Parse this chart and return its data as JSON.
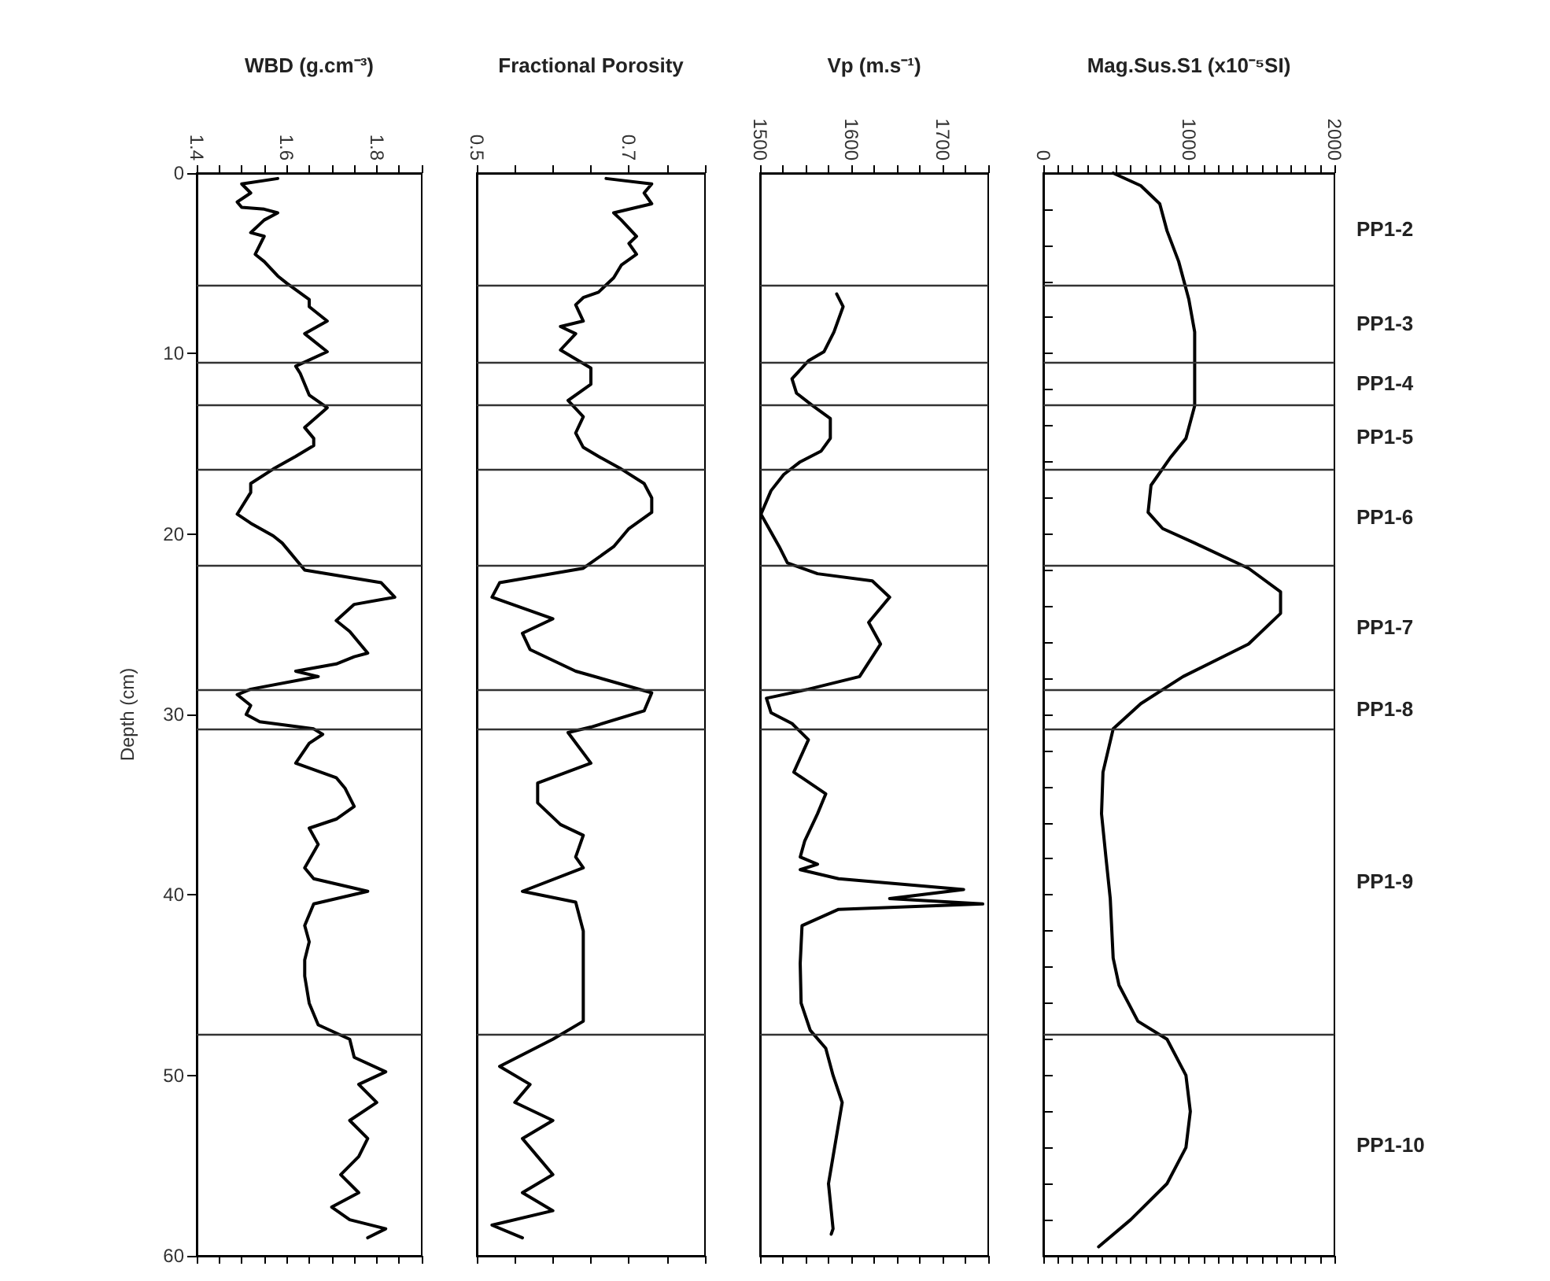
{
  "chart_data": [
    {
      "type": "line",
      "xlabel": "WBD (g.cm⁻³)",
      "ylabel": "Depth (cm)",
      "xlim": [
        1.4,
        1.9
      ],
      "xticks": [
        1.4,
        {
          "value": 1.45,
          "label": null
        },
        1.6,
        {
          "value": 1.5,
          "label": null
        },
        {
          "value": 1.55,
          "label": null
        },
        {
          "value": 1.65,
          "label": null
        },
        {
          "value": 1.7,
          "label": null
        },
        {
          "value": 1.75,
          "label": null
        },
        1.8,
        {
          "value": 1.85,
          "label": null
        },
        {
          "value": 1.9,
          "label": null
        }
      ],
      "ylim": [
        60,
        0
      ],
      "yticks": [
        0,
        10,
        20,
        30,
        40,
        50,
        60
      ],
      "series": [
        {
          "color": "#000000",
          "x": [
            1.58,
            1.5,
            1.52,
            1.49,
            1.5,
            1.55,
            1.58,
            1.55,
            1.52,
            1.55,
            1.53,
            1.55,
            1.58,
            1.6,
            1.65,
            1.65,
            1.69,
            1.64,
            1.69,
            1.62,
            1.63,
            1.65,
            1.69,
            1.64,
            1.66,
            1.66,
            1.62,
            1.57,
            1.52,
            1.52,
            1.49,
            1.52,
            1.57,
            1.59,
            1.64,
            1.81,
            1.84,
            1.75,
            1.71,
            1.74,
            1.78,
            1.75,
            1.71,
            1.62,
            1.67,
            1.52,
            1.49,
            1.52,
            1.51,
            1.54,
            1.66,
            1.68,
            1.65,
            1.62,
            1.71,
            1.73,
            1.75,
            1.71,
            1.65,
            1.67,
            1.64,
            1.66,
            1.78,
            1.66,
            1.64,
            1.65,
            1.64,
            1.64,
            1.65,
            1.67,
            1.74,
            1.75,
            1.82,
            1.76,
            1.8,
            1.74,
            1.78,
            1.76,
            1.72,
            1.76,
            1.7,
            1.74,
            1.82,
            1.78
          ],
          "values": [
            0.3,
            0.6,
            1.1,
            1.6,
            1.9,
            2.0,
            2.2,
            2.6,
            3.3,
            3.5,
            4.5,
            4.9,
            5.7,
            6.1,
            7.0,
            7.4,
            8.2,
            8.9,
            9.9,
            10.7,
            11.1,
            12.3,
            13.0,
            14.1,
            14.7,
            15.1,
            15.7,
            16.4,
            17.2,
            17.7,
            18.9,
            19.4,
            20.1,
            20.5,
            22.0,
            22.7,
            23.5,
            23.9,
            24.8,
            25.4,
            26.6,
            26.8,
            27.2,
            27.6,
            27.9,
            28.6,
            28.9,
            29.5,
            30.0,
            30.4,
            30.8,
            31.1,
            31.6,
            32.7,
            33.5,
            34.1,
            35.1,
            35.8,
            36.3,
            37.2,
            38.5,
            39.1,
            39.8,
            40.5,
            41.7,
            42.6,
            43.6,
            44.5,
            46.0,
            47.2,
            48.0,
            49.0,
            49.8,
            50.5,
            51.5,
            52.5,
            53.5,
            54.5,
            55.5,
            56.5,
            57.3,
            58.0,
            58.5,
            59.0
          ]
        }
      ],
      "ref_lines": [
        {
          "axis": "y",
          "value": 6.2
        },
        {
          "axis": "y",
          "value": 10.5
        },
        {
          "axis": "y",
          "value": 12.8
        },
        {
          "axis": "y",
          "value": 16.4
        },
        {
          "axis": "y",
          "value": 21.7
        },
        {
          "axis": "y",
          "value": 28.6
        },
        {
          "axis": "y",
          "value": 30.8
        },
        {
          "axis": "y",
          "value": 47.7
        }
      ]
    },
    {
      "type": "line",
      "xlabel": "Fractional Porosity",
      "tick_labels": "x",
      "xlim": [
        0.5,
        0.8
      ],
      "xticks": [
        0.5,
        {
          "value": 0.55,
          "label": null
        },
        {
          "value": 0.6,
          "label": null
        },
        {
          "value": 0.65,
          "label": null
        },
        0.7,
        {
          "value": 0.75,
          "label": null
        },
        {
          "value": 0.8,
          "label": null
        }
      ],
      "ylim": [
        60,
        0
      ],
      "series": [
        {
          "color": "#000000",
          "x": [
            0.67,
            0.73,
            0.72,
            0.73,
            0.68,
            0.69,
            0.71,
            0.7,
            0.71,
            0.69,
            0.68,
            0.66,
            0.64,
            0.63,
            0.64,
            0.61,
            0.63,
            0.61,
            0.65,
            0.65,
            0.62,
            0.64,
            0.63,
            0.64,
            0.66,
            0.69,
            0.72,
            0.73,
            0.73,
            0.7,
            0.68,
            0.64,
            0.53,
            0.52,
            0.6,
            0.56,
            0.57,
            0.63,
            0.73,
            0.72,
            0.65,
            0.62,
            0.65,
            0.58,
            0.58,
            0.61,
            0.64,
            0.63,
            0.64,
            0.56,
            0.63,
            0.64,
            0.64,
            0.64,
            0.64,
            0.6,
            0.53,
            0.57,
            0.55,
            0.6,
            0.56,
            0.58,
            0.6,
            0.56,
            0.6,
            0.52,
            0.56
          ],
          "values": [
            0.3,
            0.6,
            1.1,
            1.7,
            2.2,
            2.6,
            3.5,
            3.9,
            4.5,
            5.1,
            5.8,
            6.6,
            6.9,
            7.3,
            8.2,
            8.5,
            8.9,
            9.8,
            10.8,
            11.7,
            12.6,
            13.5,
            14.4,
            15.2,
            15.7,
            16.4,
            17.2,
            18.0,
            18.8,
            19.7,
            20.7,
            21.9,
            22.7,
            23.5,
            24.7,
            25.5,
            26.4,
            27.6,
            28.8,
            29.8,
            30.7,
            31.0,
            32.7,
            33.8,
            34.9,
            36.1,
            36.7,
            37.9,
            38.5,
            39.8,
            40.4,
            42.0,
            43.5,
            45.0,
            47.0,
            48.0,
            49.5,
            50.5,
            51.5,
            52.5,
            53.5,
            54.5,
            55.5,
            56.5,
            57.5,
            58.3,
            59.0
          ]
        }
      ],
      "ref_lines": [
        {
          "axis": "y",
          "value": 6.2
        },
        {
          "axis": "y",
          "value": 10.5
        },
        {
          "axis": "y",
          "value": 12.8
        },
        {
          "axis": "y",
          "value": 16.4
        },
        {
          "axis": "y",
          "value": 21.7
        },
        {
          "axis": "y",
          "value": 28.6
        },
        {
          "axis": "y",
          "value": 30.8
        },
        {
          "axis": "y",
          "value": 47.7
        }
      ]
    },
    {
      "type": "line",
      "xlabel": "Vp (m.s⁻¹)",
      "tick_labels": "x",
      "xlim": [
        1500,
        1750
      ],
      "xticks": [
        1500,
        {
          "value": 1525,
          "label": null
        },
        {
          "value": 1550,
          "label": null
        },
        {
          "value": 1575,
          "label": null
        },
        1600,
        {
          "value": 1625,
          "label": null
        },
        {
          "value": 1650,
          "label": null
        },
        {
          "value": 1675,
          "label": null
        },
        1700,
        {
          "value": 1725,
          "label": null
        },
        {
          "value": 1750,
          "label": null
        }
      ],
      "ylim": [
        60,
        0
      ],
      "series": [
        {
          "color": "#000000",
          "x": [
            1584,
            1591,
            1581,
            1570,
            1553,
            1535,
            1540,
            1558,
            1577,
            1577,
            1567,
            1544,
            1526,
            1512,
            1501,
            1521,
            1530,
            1563,
            1623,
            1642,
            1619,
            1632,
            1609,
            1553,
            1507,
            1512,
            1535,
            1553,
            1537,
            1572,
            1563,
            1549,
            1544,
            1563,
            1544,
            1586,
            1723,
            1642,
            1744,
            1586,
            1546,
            1544,
            1545,
            1555,
            1572,
            1580,
            1590,
            1585,
            1580,
            1575,
            1578,
            1580,
            1578
          ],
          "values": [
            6.7,
            7.4,
            8.8,
            9.9,
            10.4,
            11.4,
            12.2,
            12.9,
            13.6,
            14.7,
            15.4,
            16.0,
            16.7,
            17.6,
            18.9,
            20.7,
            21.6,
            22.2,
            22.6,
            23.5,
            24.9,
            26.1,
            27.9,
            28.6,
            29.1,
            29.9,
            30.5,
            31.4,
            33.2,
            34.4,
            35.5,
            37.0,
            37.9,
            38.3,
            38.6,
            39.1,
            39.7,
            40.2,
            40.5,
            40.8,
            41.7,
            43.8,
            46.0,
            47.5,
            48.5,
            50.0,
            51.5,
            53.0,
            54.5,
            56.0,
            57.5,
            58.5,
            58.8
          ]
        }
      ],
      "ref_lines": [
        {
          "axis": "y",
          "value": 6.2
        },
        {
          "axis": "y",
          "value": 10.5
        },
        {
          "axis": "y",
          "value": 12.8
        },
        {
          "axis": "y",
          "value": 16.4
        },
        {
          "axis": "y",
          "value": 21.7
        },
        {
          "axis": "y",
          "value": 28.6
        },
        {
          "axis": "y",
          "value": 30.8
        },
        {
          "axis": "y",
          "value": 47.7
        }
      ]
    },
    {
      "type": "line",
      "xlabel": "Mag.Sus.S1 (x10⁻⁵SI)",
      "tick_labels": "x",
      "xlim": [
        0,
        2000
      ],
      "xticks": [
        0,
        {
          "value": 100,
          "label": null
        },
        {
          "value": 200,
          "label": null
        },
        {
          "value": 300,
          "label": null
        },
        {
          "value": 400,
          "label": null
        },
        {
          "value": 500,
          "label": null
        },
        {
          "value": 600,
          "label": null
        },
        {
          "value": 700,
          "label": null
        },
        {
          "value": 800,
          "label": null
        },
        {
          "value": 900,
          "label": null
        },
        1000,
        {
          "value": 1100,
          "label": null
        },
        {
          "value": 1200,
          "label": null
        },
        {
          "value": 1300,
          "label": null
        },
        {
          "value": 1400,
          "label": null
        },
        {
          "value": 1500,
          "label": null
        },
        {
          "value": 1600,
          "label": null
        },
        {
          "value": 1700,
          "label": null
        },
        {
          "value": 1800,
          "label": null
        },
        {
          "value": 1900,
          "label": null
        },
        2000
      ],
      "ylim": [
        60,
        0
      ],
      "yticks": [
        {
          "value": 0,
          "label": null
        },
        {
          "value": 2,
          "label": null
        },
        {
          "value": 4,
          "label": null
        },
        {
          "value": 6,
          "label": null
        },
        {
          "value": 8,
          "label": null
        },
        {
          "value": 10,
          "label": null
        },
        {
          "value": 12,
          "label": null
        },
        {
          "value": 14,
          "label": null
        },
        {
          "value": 16,
          "label": null
        },
        {
          "value": 18,
          "label": null
        },
        {
          "value": 20,
          "label": null
        },
        {
          "value": 22,
          "label": null
        },
        {
          "value": 24,
          "label": null
        },
        {
          "value": 26,
          "label": null
        },
        {
          "value": 28,
          "label": null
        },
        {
          "value": 30,
          "label": null
        },
        {
          "value": 32,
          "label": null
        },
        {
          "value": 34,
          "label": null
        },
        {
          "value": 36,
          "label": null
        },
        {
          "value": 38,
          "label": null
        },
        {
          "value": 40,
          "label": null
        },
        {
          "value": 42,
          "label": null
        },
        {
          "value": 44,
          "label": null
        },
        {
          "value": 46,
          "label": null
        },
        {
          "value": 48,
          "label": null
        },
        {
          "value": 50,
          "label": null
        },
        {
          "value": 52,
          "label": null
        },
        {
          "value": 54,
          "label": null
        },
        {
          "value": 56,
          "label": null
        },
        {
          "value": 58,
          "label": null
        },
        {
          "value": 60,
          "label": null
        }
      ],
      "series": [
        {
          "color": "#000000",
          "x": [
            480,
            670,
            800,
            850,
            930,
            1000,
            1040,
            1040,
            1040,
            980,
            870,
            740,
            720,
            820,
            1040,
            1410,
            1630,
            1630,
            1410,
            960,
            670,
            480,
            410,
            400,
            430,
            460,
            480,
            520,
            650,
            850,
            980,
            1010,
            980,
            850,
            600,
            380
          ],
          "values": [
            0,
            0.7,
            1.7,
            3.2,
            4.9,
            7.0,
            8.8,
            11.1,
            12.9,
            14.7,
            15.8,
            17.3,
            18.8,
            19.7,
            20.5,
            21.9,
            23.2,
            24.4,
            26.1,
            27.9,
            29.4,
            30.8,
            33.2,
            35.5,
            37.9,
            40.2,
            43.5,
            45.0,
            47.0,
            48.0,
            50.0,
            52.0,
            54.0,
            56.0,
            58.0,
            59.5
          ]
        }
      ],
      "ref_lines": [
        {
          "axis": "y",
          "value": 6.2
        },
        {
          "axis": "y",
          "value": 10.5
        },
        {
          "axis": "y",
          "value": 12.8
        },
        {
          "axis": "y",
          "value": 16.4
        },
        {
          "axis": "y",
          "value": 21.7
        },
        {
          "axis": "y",
          "value": 28.6
        },
        {
          "axis": "y",
          "value": 30.8
        },
        {
          "axis": "y",
          "value": 47.7
        }
      ],
      "annotations": [
        "PP1-2",
        "PP1-3",
        "PP1-4",
        "PP1-5",
        "PP1-6",
        "PP1-7",
        "PP1-8",
        "PP1-9",
        "PP1-10"
      ]
    }
  ]
}
